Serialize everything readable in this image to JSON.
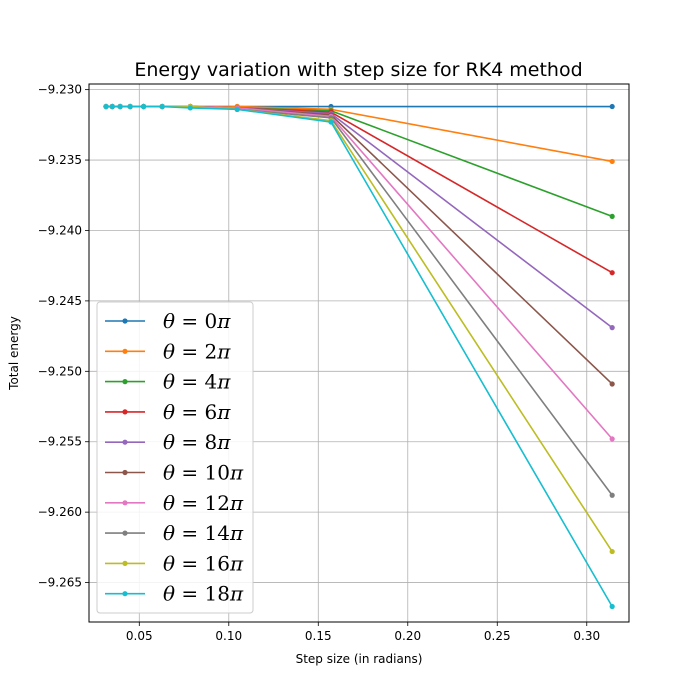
{
  "chart_data": {
    "type": "line",
    "title": "Energy variation with step size for RK4 method",
    "xlabel": "Step size (in radians)",
    "ylabel": "Total energy",
    "xlim": [
      0.0219,
      0.3236
    ],
    "ylim": [
      -9.2678,
      -9.2296
    ],
    "xticks": [
      {
        "value": 0.05,
        "label": "0.05"
      },
      {
        "value": 0.1,
        "label": "0.10"
      },
      {
        "value": 0.15,
        "label": "0.15"
      },
      {
        "value": 0.2,
        "label": "0.20"
      },
      {
        "value": 0.25,
        "label": "0.25"
      },
      {
        "value": 0.3,
        "label": "0.30"
      }
    ],
    "yticks": [
      {
        "value": -9.23,
        "label": "−9.230"
      },
      {
        "value": -9.235,
        "label": "−9.235"
      },
      {
        "value": -9.24,
        "label": "−9.240"
      },
      {
        "value": -9.245,
        "label": "−9.245"
      },
      {
        "value": -9.25,
        "label": "−9.250"
      },
      {
        "value": -9.255,
        "label": "−9.255"
      },
      {
        "value": -9.26,
        "label": "−9.260"
      },
      {
        "value": -9.265,
        "label": "−9.265"
      }
    ],
    "grid": true,
    "legend_position": "lower-left",
    "x": [
      0.0314,
      0.0349,
      0.0393,
      0.0449,
      0.0524,
      0.0628,
      0.0785,
      0.1047,
      0.1571,
      0.3142
    ],
    "series": [
      {
        "name": "θ = 0π",
        "legend_value": "0",
        "color": "#1f77b4",
        "values": [
          -9.2312,
          -9.2312,
          -9.2312,
          -9.2312,
          -9.2312,
          -9.2312,
          -9.2312,
          -9.2312,
          -9.2312,
          -9.2312
        ]
      },
      {
        "name": "θ = 2π",
        "legend_value": "2",
        "color": "#ff7f0e",
        "values": [
          -9.2312,
          -9.2312,
          -9.2312,
          -9.2312,
          -9.2312,
          -9.2312,
          -9.2312,
          -9.2312,
          -9.2314,
          -9.2351
        ]
      },
      {
        "name": "θ = 4π",
        "legend_value": "4",
        "color": "#2ca02c",
        "values": [
          -9.2312,
          -9.2312,
          -9.2312,
          -9.2312,
          -9.2312,
          -9.2312,
          -9.2312,
          -9.2313,
          -9.2315,
          -9.239
        ]
      },
      {
        "name": "θ = 6π",
        "legend_value": "6",
        "color": "#d62728",
        "values": [
          -9.2312,
          -9.2312,
          -9.2312,
          -9.2312,
          -9.2312,
          -9.2312,
          -9.2312,
          -9.2313,
          -9.2316,
          -9.243
        ]
      },
      {
        "name": "θ = 8π",
        "legend_value": "8",
        "color": "#9467bd",
        "values": [
          -9.2312,
          -9.2312,
          -9.2312,
          -9.2312,
          -9.2312,
          -9.2312,
          -9.2312,
          -9.2313,
          -9.2317,
          -9.2469
        ]
      },
      {
        "name": "θ = 10π",
        "legend_value": "10",
        "color": "#8c564b",
        "values": [
          -9.2312,
          -9.2312,
          -9.2312,
          -9.2312,
          -9.2312,
          -9.2312,
          -9.2312,
          -9.2313,
          -9.2318,
          -9.2509
        ]
      },
      {
        "name": "θ = 12π",
        "legend_value": "12",
        "color": "#e377c2",
        "values": [
          -9.2312,
          -9.2312,
          -9.2312,
          -9.2312,
          -9.2312,
          -9.2312,
          -9.2312,
          -9.2313,
          -9.2319,
          -9.2548
        ]
      },
      {
        "name": "θ = 14π",
        "legend_value": "14",
        "color": "#7f7f7f",
        "values": [
          -9.2312,
          -9.2312,
          -9.2312,
          -9.2312,
          -9.2312,
          -9.2312,
          -9.2312,
          -9.2314,
          -9.232,
          -9.2588
        ]
      },
      {
        "name": "θ = 16π",
        "legend_value": "16",
        "color": "#bcbd22",
        "values": [
          -9.2312,
          -9.2312,
          -9.2312,
          -9.2312,
          -9.2312,
          -9.2312,
          -9.2312,
          -9.2314,
          -9.2322,
          -9.2628
        ]
      },
      {
        "name": "θ = 18π",
        "legend_value": "18",
        "color": "#17becf",
        "values": [
          -9.2312,
          -9.2312,
          -9.2312,
          -9.2312,
          -9.2312,
          -9.2312,
          -9.2313,
          -9.2314,
          -9.2323,
          -9.2667
        ]
      }
    ]
  }
}
